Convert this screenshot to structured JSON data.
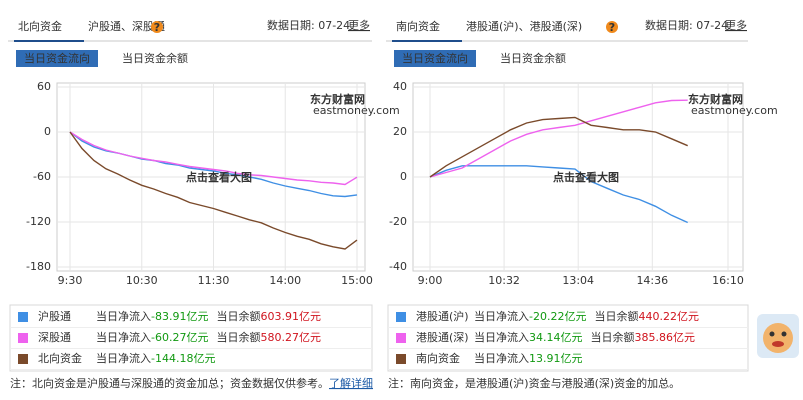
{
  "panels": [
    {
      "title": "北向资金",
      "subtitle": "沪股通、深股通",
      "help": "?",
      "date": "数据日期: 07-24",
      "more": "更多",
      "tabs": [
        "当日资金流向",
        "当日资金余额"
      ],
      "watermark": "东方财富网",
      "watermark_sub": "eastmoney.com",
      "watermark_link": "点击查看大图",
      "legend": [
        {
          "inflow_label": "当日净流入",
          "inflow": "-83.91亿元",
          "balance_label": "当日余额",
          "balance": "603.91亿元"
        },
        {
          "inflow_label": "当日净流入",
          "inflow": "-60.27亿元",
          "balance_label": "当日余额",
          "balance": "580.27亿元"
        },
        {
          "inflow_label": "当日净流入",
          "inflow": "-144.18亿元"
        }
      ],
      "note": "注：北向资金是沪股通与深股通的资金加总；资金数据仅供参考。",
      "note_link": "了解详细"
    },
    {
      "title": "南向资金",
      "subtitle": "港股通(沪)、港股通(深)",
      "help": "?",
      "date": "数据日期: 07-24",
      "more": "更多",
      "tabs": [
        "当日资金流向",
        "当日资金余额"
      ],
      "watermark": "东方财富网",
      "watermark_sub": "eastmoney.com",
      "watermark_link": "点击查看大图",
      "legend": [
        {
          "inflow_label": "当日净流入",
          "inflow": "-20.22亿元",
          "balance_label": "当日余额",
          "balance": "440.22亿元"
        },
        {
          "inflow_label": "当日净流入",
          "inflow": "34.14亿元",
          "balance_label": "当日余额",
          "balance": "385.86亿元"
        },
        {
          "inflow_label": "当日净流入",
          "inflow": "13.91亿元"
        }
      ],
      "note": "注：南向资金，是港股通(沪)资金与港股通(深)资金的加总。"
    }
  ],
  "chart_data": [
    {
      "type": "line",
      "grid": true,
      "x": [
        "9:30",
        "9:40",
        "9:50",
        "10:00",
        "10:10",
        "10:20",
        "10:30",
        "10:40",
        "10:50",
        "11:00",
        "11:10",
        "11:20",
        "11:30",
        "13:10",
        "13:20",
        "13:30",
        "13:40",
        "13:50",
        "14:00",
        "14:10",
        "14:20",
        "14:30",
        "14:40",
        "14:50",
        "15:00"
      ],
      "xlim": [
        "9:30",
        "15:00"
      ],
      "xticks": [
        "9:30",
        "10:30",
        "11:30",
        "14:00",
        "15:00"
      ],
      "ylim": [
        -180,
        60
      ],
      "yticks": [
        60,
        0,
        -60,
        -120,
        -180
      ],
      "series": [
        {
          "name": "沪股通",
          "color": "#3f8fe4",
          "values": [
            0,
            -12,
            -20,
            -25,
            -28,
            -32,
            -36,
            -38,
            -42,
            -44,
            -48,
            -50,
            -52,
            -55,
            -57,
            -60,
            -63,
            -68,
            -72,
            -75,
            -78,
            -82,
            -85,
            -86,
            -83.91
          ]
        },
        {
          "name": "深股通",
          "color": "#ee62ee",
          "values": [
            0,
            -10,
            -18,
            -24,
            -28,
            -32,
            -35,
            -38,
            -40,
            -43,
            -46,
            -48,
            -50,
            -52,
            -55,
            -57,
            -58,
            -60,
            -62,
            -64,
            -65,
            -67,
            -68,
            -70,
            -60.27
          ]
        },
        {
          "name": "北向资金",
          "color": "#7a4a2b",
          "values": [
            0,
            -22,
            -38,
            -49,
            -56,
            -64,
            -71,
            -76,
            -82,
            -87,
            -94,
            -98,
            -102,
            -107,
            -112,
            -117,
            -121,
            -128,
            -134,
            -139,
            -143,
            -149,
            -153,
            -156,
            -144.18
          ]
        }
      ]
    },
    {
      "type": "line",
      "grid": true,
      "x": [
        "9:00",
        "9:20",
        "9:40",
        "10:00",
        "10:20",
        "10:40",
        "11:00",
        "11:20",
        "11:40",
        "12:00",
        "13:20",
        "13:40",
        "14:00",
        "14:20",
        "14:40",
        "15:00",
        "15:20"
      ],
      "xlim": [
        "9:00",
        "16:10"
      ],
      "xticks": [
        "9:00",
        "10:32",
        "13:04",
        "14:36",
        "16:10"
      ],
      "ylim": [
        -40,
        40
      ],
      "yticks": [
        40,
        20,
        0,
        -20,
        -40
      ],
      "series": [
        {
          "name": "港股通(沪)",
          "color": "#3f8fe4",
          "values": [
            0,
            3,
            5,
            5,
            5,
            5,
            5,
            4.5,
            4,
            3.5,
            -2,
            -5,
            -8,
            -10,
            -13,
            -17,
            -20.22
          ]
        },
        {
          "name": "港股通(深)",
          "color": "#ee62ee",
          "values": [
            0,
            2,
            4,
            8,
            12,
            16,
            19,
            21,
            22,
            23,
            25,
            27,
            29,
            31,
            33,
            34,
            34.14
          ]
        },
        {
          "name": "南向资金",
          "color": "#7a4a2b",
          "values": [
            0,
            5,
            9,
            13,
            17,
            21,
            24,
            25.5,
            26,
            26.5,
            23,
            22,
            21,
            21,
            20,
            17,
            13.91
          ]
        }
      ]
    }
  ]
}
